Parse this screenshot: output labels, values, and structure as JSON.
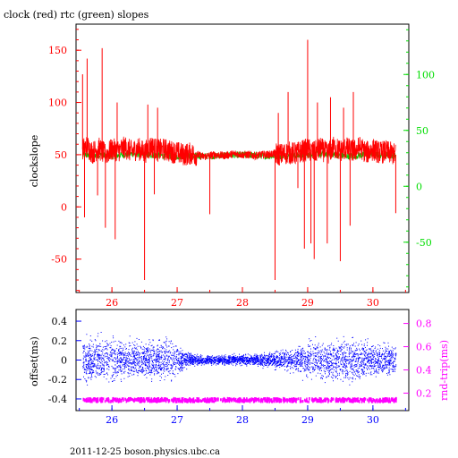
{
  "chart_data": [
    {
      "type": "line",
      "title": "clock (red) rtc (green) slopes",
      "xlabel": "",
      "ylabel": "clockslope",
      "x_ticks": [
        "26",
        "27",
        "28",
        "29",
        "30"
      ],
      "xlim": [
        25.45,
        30.55
      ],
      "ylim_left": [
        -82,
        175
      ],
      "y_ticks_left": [
        "150",
        "100",
        "50",
        "0",
        "-50"
      ],
      "ylim_right": [
        -95,
        145
      ],
      "y_ticks_right": [
        "100",
        "50",
        "0",
        "-50"
      ],
      "grid": false,
      "colors": {
        "clock": "#ff0000",
        "rtc": "#00cc00",
        "left_axis": "#ff0000",
        "right_axis": "#00dd00",
        "x_axis": "#ff0000"
      },
      "series": [
        {
          "name": "clock",
          "color": "#ff0000",
          "x": [
            25.55,
            25.62,
            25.7,
            25.8,
            25.9,
            26.0,
            26.1,
            26.2,
            26.3,
            26.4,
            26.5,
            26.6,
            26.7,
            26.8,
            26.9,
            27.0,
            27.1,
            27.2,
            27.3,
            27.4,
            27.5,
            27.6,
            27.7,
            27.8,
            27.9,
            28.0,
            28.1,
            28.2,
            28.3,
            28.4,
            28.5,
            28.6,
            28.7,
            28.8,
            28.9,
            29.0,
            29.1,
            29.2,
            29.3,
            29.4,
            29.5,
            29.6,
            29.7,
            29.8,
            29.9,
            30.0,
            30.1,
            30.2,
            30.3,
            30.35
          ],
          "y": [
            55,
            58,
            52,
            56,
            50,
            55,
            54,
            57,
            53,
            56,
            52,
            58,
            54,
            55,
            53,
            52,
            50,
            51,
            50,
            48,
            49,
            50,
            49,
            50,
            51,
            50,
            50,
            49,
            50,
            50,
            51,
            50,
            52,
            51,
            53,
            55,
            52,
            56,
            51,
            57,
            54,
            56,
            53,
            57,
            52,
            55,
            52,
            53,
            51,
            50
          ],
          "spikes": [
            {
              "x": 25.55,
              "y": 127
            },
            {
              "x": 25.58,
              "y": -10
            },
            {
              "x": 25.62,
              "y": 142
            },
            {
              "x": 25.78,
              "y": 11
            },
            {
              "x": 25.85,
              "y": 152
            },
            {
              "x": 25.9,
              "y": -20
            },
            {
              "x": 26.05,
              "y": -31
            },
            {
              "x": 26.08,
              "y": 100
            },
            {
              "x": 26.5,
              "y": -70
            },
            {
              "x": 26.55,
              "y": 98
            },
            {
              "x": 26.65,
              "y": 12
            },
            {
              "x": 26.7,
              "y": 95
            },
            {
              "x": 27.5,
              "y": -7
            },
            {
              "x": 28.5,
              "y": -70
            },
            {
              "x": 28.55,
              "y": 90
            },
            {
              "x": 28.7,
              "y": 110
            },
            {
              "x": 28.85,
              "y": 18
            },
            {
              "x": 28.95,
              "y": -40
            },
            {
              "x": 29.0,
              "y": 160
            },
            {
              "x": 29.05,
              "y": -35
            },
            {
              "x": 29.1,
              "y": -50
            },
            {
              "x": 29.15,
              "y": 100
            },
            {
              "x": 29.3,
              "y": -35
            },
            {
              "x": 29.35,
              "y": 105
            },
            {
              "x": 29.5,
              "y": -52
            },
            {
              "x": 29.55,
              "y": 95
            },
            {
              "x": 29.65,
              "y": -18
            },
            {
              "x": 29.7,
              "y": 110
            },
            {
              "x": 30.35,
              "y": -6
            }
          ]
        },
        {
          "name": "rtc",
          "color": "#00cc00",
          "x": [
            25.55,
            25.8,
            26.0,
            26.3,
            26.6,
            26.9,
            27.2,
            27.5,
            27.8,
            28.1,
            28.4,
            28.7,
            29.0,
            29.3,
            29.6,
            29.9,
            30.2,
            30.35
          ],
          "y": [
            28,
            28,
            27,
            29,
            28,
            27,
            27,
            27,
            28,
            28,
            27,
            27,
            28,
            29,
            27,
            28,
            28,
            27
          ]
        }
      ]
    },
    {
      "type": "scatter",
      "title": "",
      "xlabel": "",
      "ylabel_left": "offset(ms)",
      "ylabel_right": "rnd-trip(ms)",
      "x_ticks": [
        "26",
        "27",
        "28",
        "29",
        "30"
      ],
      "xlim": [
        25.45,
        30.55
      ],
      "ylim_left": [
        -0.52,
        0.52
      ],
      "y_ticks_left": [
        "0.4",
        "0.2",
        "0",
        "-0.2",
        "-0.4"
      ],
      "ylim_right": [
        0.05,
        0.92
      ],
      "y_ticks_right": [
        "0.8",
        "0.6",
        "0.4",
        "0.2"
      ],
      "grid": false,
      "colors": {
        "offset": "#0000ff",
        "rndtrip": "#ff00ff",
        "x_axis": "#0000ff",
        "left_axis": "#0000ff",
        "right_axis": "#ff00ff"
      },
      "series": [
        {
          "name": "offset(ms)",
          "color": "#0000ff",
          "envelope_x": [
            25.55,
            25.8,
            26.0,
            26.3,
            26.6,
            26.9,
            27.0,
            27.2,
            27.5,
            27.8,
            28.1,
            28.4,
            28.7,
            29.0,
            29.3,
            29.6,
            29.9,
            30.2,
            30.35
          ],
          "envelope_spread": [
            0.3,
            0.32,
            0.3,
            0.25,
            0.28,
            0.3,
            0.2,
            0.08,
            0.06,
            0.07,
            0.07,
            0.1,
            0.15,
            0.25,
            0.3,
            0.3,
            0.25,
            0.22,
            0.2
          ]
        },
        {
          "name": "rnd-trip(ms)",
          "color": "#ff00ff",
          "x": [
            25.55,
            30.35
          ],
          "y": [
            0.14,
            0.14
          ]
        }
      ]
    }
  ],
  "footer": {
    "text": "2011-12-25  boson.physics.ubc.ca"
  }
}
